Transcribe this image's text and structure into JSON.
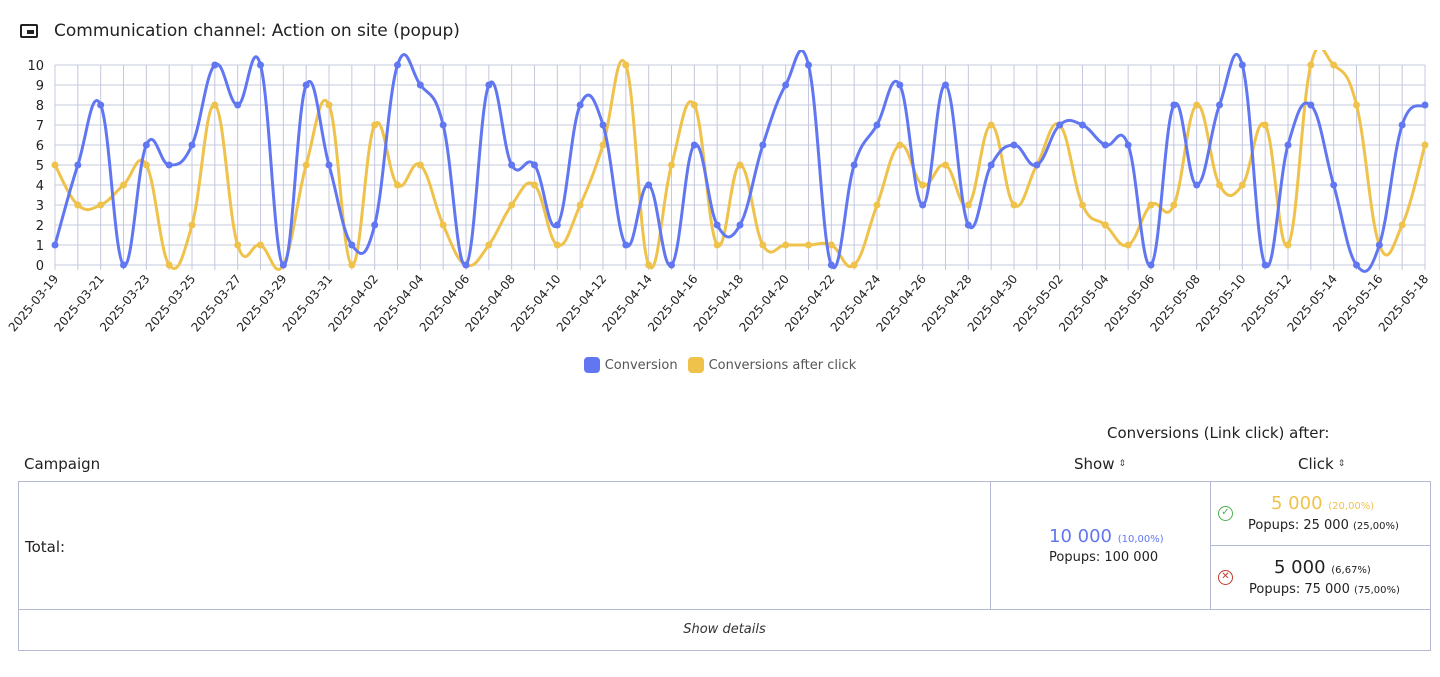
{
  "header": {
    "icon": "picture-in-picture-icon",
    "title": "Communication channel: Action on site (popup)"
  },
  "chart_data": {
    "type": "line",
    "x": [
      "2025-03-19",
      "2025-03-20",
      "2025-03-21",
      "2025-03-22",
      "2025-03-23",
      "2025-03-24",
      "2025-03-25",
      "2025-03-26",
      "2025-03-27",
      "2025-03-28",
      "2025-03-29",
      "2025-03-30",
      "2025-03-31",
      "2025-04-01",
      "2025-04-02",
      "2025-04-03",
      "2025-04-04",
      "2025-04-05",
      "2025-04-06",
      "2025-04-07",
      "2025-04-08",
      "2025-04-09",
      "2025-04-10",
      "2025-04-11",
      "2025-04-12",
      "2025-04-13",
      "2025-04-14",
      "2025-04-15",
      "2025-04-16",
      "2025-04-17",
      "2025-04-18",
      "2025-04-19",
      "2025-04-20",
      "2025-04-21",
      "2025-04-22",
      "2025-04-23",
      "2025-04-24",
      "2025-04-25",
      "2025-04-26",
      "2025-04-27",
      "2025-04-28",
      "2025-04-29",
      "2025-04-30",
      "2025-05-01",
      "2025-05-02",
      "2025-05-03",
      "2025-05-04",
      "2025-05-05",
      "2025-05-06",
      "2025-05-07",
      "2025-05-08",
      "2025-05-09",
      "2025-05-10",
      "2025-05-11",
      "2025-05-12",
      "2025-05-13",
      "2025-05-14",
      "2025-05-15",
      "2025-05-16",
      "2025-05-17",
      "2025-05-18"
    ],
    "tick_labels": [
      "2025-03-19",
      "2025-03-21",
      "2025-03-23",
      "2025-03-25",
      "2025-03-27",
      "2025-03-29",
      "2025-03-31",
      "2025-04-02",
      "2025-04-04",
      "2025-04-06",
      "2025-04-08",
      "2025-04-10",
      "2025-04-12",
      "2025-04-14",
      "2025-04-16",
      "2025-04-18",
      "2025-04-20",
      "2025-04-22",
      "2025-04-24",
      "2025-04-26",
      "2025-04-28",
      "2025-04-30",
      "2025-05-02",
      "2025-05-04",
      "2025-05-06",
      "2025-05-08",
      "2025-05-10",
      "2025-05-12",
      "2025-05-14",
      "2025-05-16",
      "2025-05-18"
    ],
    "series": [
      {
        "name": "Conversion",
        "color": "#6177f2",
        "values": [
          1,
          5,
          8,
          0,
          6,
          5,
          6,
          10,
          8,
          10,
          0,
          9,
          5,
          1,
          2,
          10,
          9,
          7,
          0,
          9,
          5,
          5,
          2,
          8,
          7,
          1,
          4,
          0,
          6,
          2,
          2,
          6,
          9,
          10,
          0,
          5,
          7,
          9,
          3,
          9,
          2,
          5,
          6,
          5,
          7,
          7,
          6,
          6,
          0,
          8,
          4,
          8,
          10,
          0,
          6,
          8,
          4,
          0,
          1,
          7,
          8
        ]
      },
      {
        "name": "Conversions after click",
        "color": "#efc24c",
        "values": [
          5,
          3,
          3,
          4,
          5,
          0,
          2,
          8,
          1,
          1,
          0,
          5,
          8,
          0,
          7,
          4,
          5,
          2,
          0,
          1,
          3,
          4,
          1,
          3,
          6,
          10,
          0,
          5,
          8,
          1,
          5,
          1,
          1,
          1,
          1,
          0,
          3,
          6,
          4,
          5,
          3,
          7,
          3,
          5,
          7,
          3,
          2,
          1,
          3,
          3,
          8,
          4,
          4,
          7,
          1,
          10,
          10,
          8,
          1,
          2,
          6
        ]
      }
    ],
    "ylim": [
      0,
      10
    ],
    "yticks": [
      "0",
      "1",
      "2",
      "3",
      "4",
      "5",
      "6",
      "7",
      "8",
      "9",
      "10"
    ],
    "grid": true,
    "legend": "bottom-center"
  },
  "legend": {
    "conversion": {
      "label": "Conversion",
      "color": "#6177f2"
    },
    "after_click": {
      "label": "Conversions after click",
      "color": "#efc24c"
    }
  },
  "table": {
    "group_header": "Conversions (Link click) after:",
    "col_campaign": "Campaign",
    "col_show": "Show",
    "col_click": "Click",
    "sort_glyph": "⇕",
    "total_label": "Total:",
    "show": {
      "value": "10 000",
      "pct": "(10,00%)",
      "popups": "Popups: 100 000"
    },
    "click_positive": {
      "icon": "check-circle-icon",
      "value": "5 000",
      "pct": "(20,00%)",
      "popups": "Popups: 25 000",
      "popups_pct": "(25,00%)"
    },
    "click_negative": {
      "icon": "cross-circle-icon",
      "value": "5 000",
      "pct": "(6,67%)",
      "popups": "Popups: 75 000",
      "popups_pct": "(75,00%)"
    },
    "details_label": "Show details"
  }
}
